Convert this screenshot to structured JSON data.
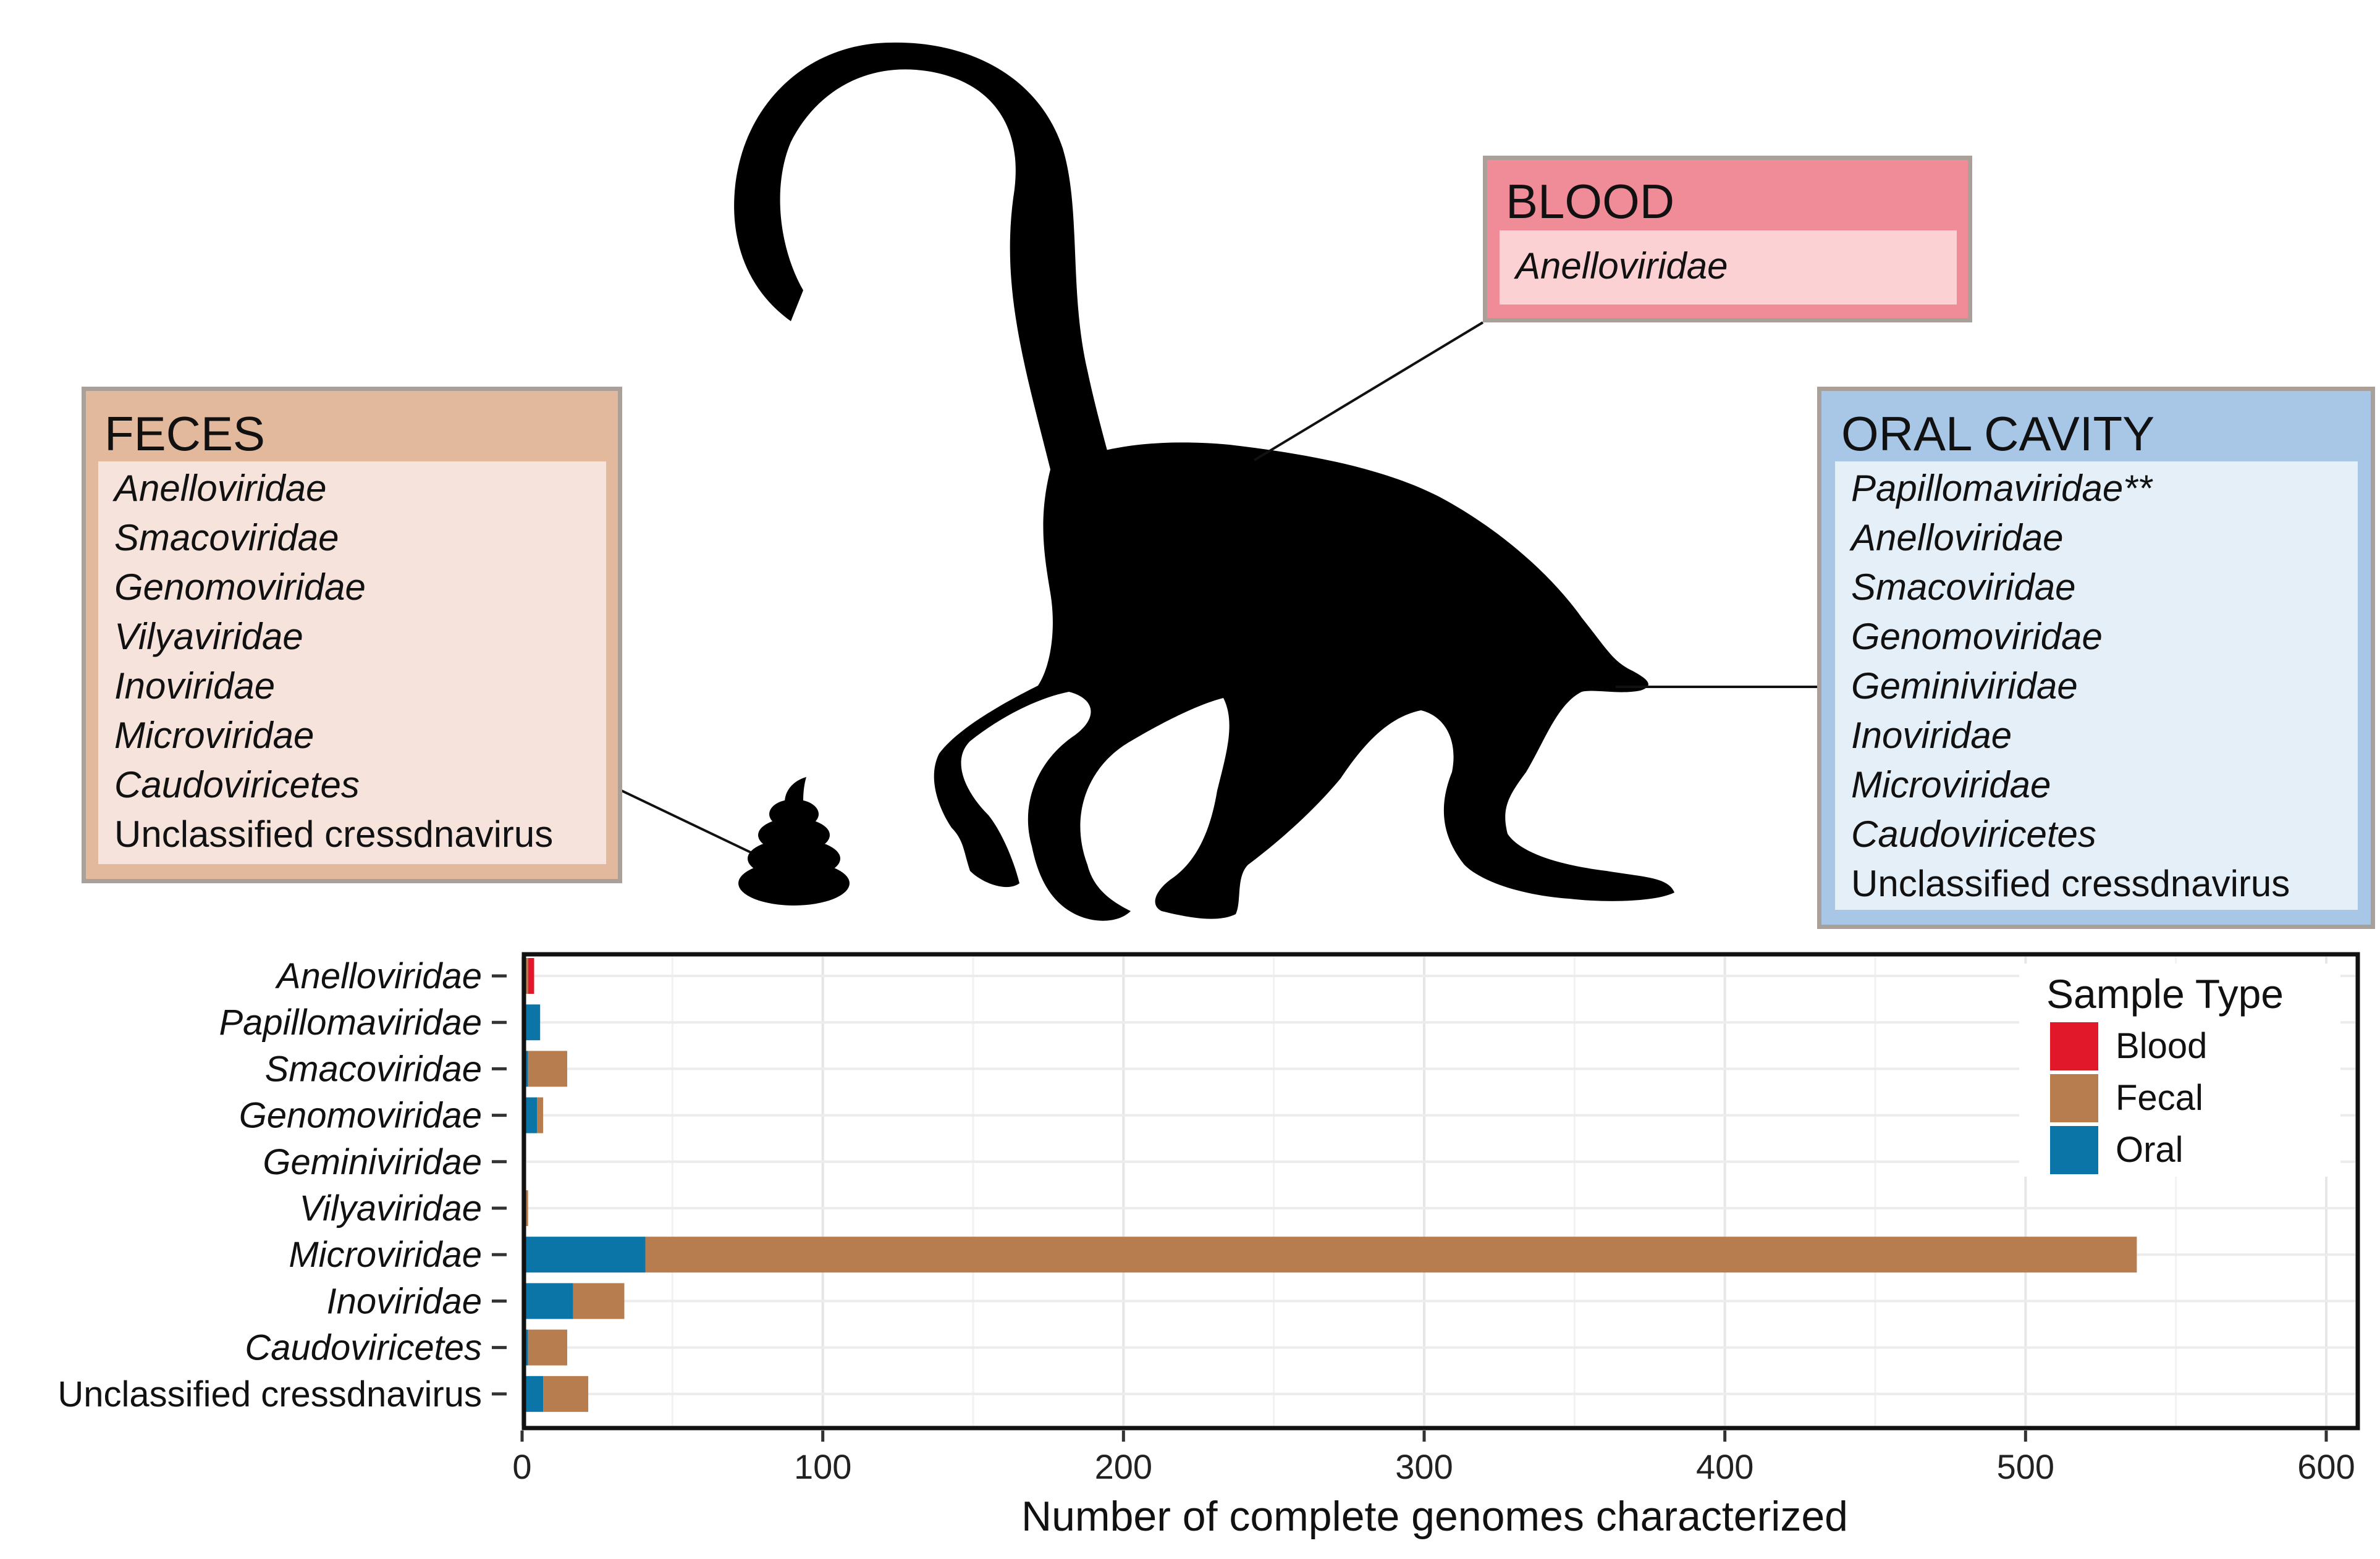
{
  "panels": {
    "feces": {
      "title": "FECES",
      "items": [
        "Anelloviridae",
        "Smacoviridae",
        "Genomoviridae",
        "Vilyaviridae",
        "Inoviridae",
        "Microviridae",
        "Caudoviricetes",
        "Unclassified cressdnavirus"
      ]
    },
    "blood": {
      "title": "BLOOD",
      "items": [
        "Anelloviridae"
      ]
    },
    "oral": {
      "title": "ORAL CAVITY",
      "items": [
        "Papillomaviridae**",
        "Anelloviridae",
        "Smacoviridae",
        "Genomoviridae",
        "Geminiviridae",
        "Inoviridae",
        "Microviridae",
        "Caudoviricetes",
        "Unclassified cressdnavirus"
      ]
    }
  },
  "icons": [
    "lemur-silhouette-icon",
    "feces-icon"
  ],
  "chart_data": {
    "type": "bar",
    "orientation": "horizontal",
    "stacked": true,
    "categories": [
      "Anelloviridae",
      "Papillomaviridae",
      "Smacoviridae",
      "Genomoviridae",
      "Geminiviridae",
      "Vilyaviridae",
      "Microviridae",
      "Inoviridae",
      "Caudoviricetes",
      "Unclassified cressdnavirus"
    ],
    "series": [
      {
        "name": "Oral",
        "color": "#0b75a8",
        "values": [
          1,
          6,
          2,
          5,
          1,
          0,
          41,
          17,
          2,
          7
        ]
      },
      {
        "name": "Fecal",
        "color": "#b87d4f",
        "values": [
          1,
          0,
          13,
          2,
          0,
          2,
          496,
          17,
          13,
          15
        ]
      },
      {
        "name": "Blood",
        "color": "#e0182a",
        "values": [
          2,
          0,
          0,
          0,
          0,
          0,
          0,
          0,
          0,
          0
        ]
      }
    ],
    "xlabel": "Number of complete genomes characterized",
    "xlim": [
      0,
      605
    ],
    "xticks": [
      0,
      100,
      200,
      300,
      400,
      500,
      600
    ],
    "legend": {
      "title": "Sample Type",
      "entries": [
        "Blood",
        "Fecal",
        "Oral"
      ],
      "position": "top-right"
    },
    "grid": true
  }
}
